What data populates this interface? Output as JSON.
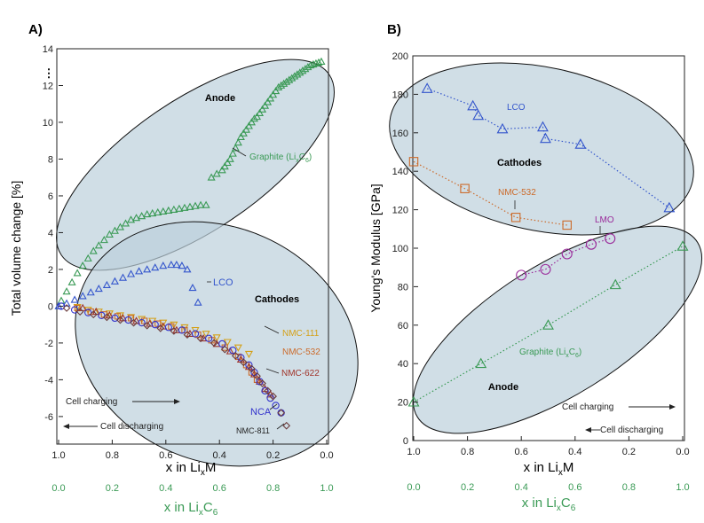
{
  "chart_data": [
    {
      "type": "scatter",
      "panel_label": "A)",
      "xlabel": "x in Li",
      "xlabel_sub": "x",
      "xlabel_tail": "M",
      "xlabel2": "x in Li",
      "xlabel2_sub": "x",
      "xlabel2_tail": "C",
      "xlabel2_sub2": "6",
      "ylabel": "Total volume change [%]",
      "xlim": [
        1.0,
        0.0
      ],
      "ylim": [
        -7.5,
        14
      ],
      "xticks": [
        "1.0",
        "0.8",
        "0.6",
        "0.4",
        "0.2",
        "0.0"
      ],
      "xticks2": [
        "0.0",
        "0.2",
        "0.4",
        "0.6",
        "0.8",
        "1.0"
      ],
      "yticks": [
        "-6",
        "-4",
        "-2",
        "0",
        "2",
        "4",
        "6",
        "8",
        "10",
        "12",
        "14"
      ],
      "ybreak": "⋮",
      "region_labels": {
        "anode": "Anode",
        "cathodes": "Cathodes"
      },
      "arrows": {
        "charging": "Cell charging",
        "discharging": "Cell discharging"
      },
      "series": [
        {
          "name": "Graphite (LixC6)",
          "label_main": "Graphite (Li",
          "label_sub": "x",
          "label_c": "C",
          "label_sub2": "6",
          "label_close": ")",
          "color": "#3a9a55",
          "marker": "triangle",
          "x": [
            0.99,
            0.97,
            0.95,
            0.93,
            0.91,
            0.89,
            0.87,
            0.85,
            0.83,
            0.81,
            0.79,
            0.77,
            0.75,
            0.73,
            0.71,
            0.69,
            0.67,
            0.65,
            0.63,
            0.61,
            0.59,
            0.57,
            0.55,
            0.53,
            0.51,
            0.49,
            0.47,
            0.45,
            0.43,
            0.41,
            0.39,
            0.38,
            0.37,
            0.36,
            0.35,
            0.34,
            0.33,
            0.32,
            0.31,
            0.3,
            0.29,
            0.28,
            0.27,
            0.26,
            0.25,
            0.24,
            0.23,
            0.22,
            0.21,
            0.2,
            0.19,
            0.18,
            0.17,
            0.16,
            0.15,
            0.14,
            0.13,
            0.12,
            0.11,
            0.1,
            0.09,
            0.08,
            0.07,
            0.06,
            0.05,
            0.04,
            0.03,
            0.02
          ],
          "y": [
            0.3,
            0.8,
            1.3,
            1.8,
            2.2,
            2.6,
            3.0,
            3.3,
            3.6,
            3.9,
            4.1,
            4.3,
            4.5,
            4.7,
            4.8,
            4.9,
            5.0,
            5.05,
            5.1,
            5.15,
            5.2,
            5.25,
            5.3,
            5.35,
            5.4,
            5.45,
            5.5,
            5.5,
            7.0,
            7.2,
            7.4,
            7.6,
            7.8,
            8.0,
            8.3,
            8.6,
            8.9,
            9.2,
            9.4,
            9.6,
            9.8,
            10.0,
            10.2,
            10.3,
            10.5,
            10.7,
            10.9,
            11.1,
            11.3,
            11.5,
            11.7,
            11.9,
            12.0,
            12.1,
            12.2,
            12.3,
            12.4,
            12.5,
            12.6,
            12.7,
            12.8,
            12.9,
            13.0,
            13.1,
            13.15,
            13.2,
            13.25,
            13.3
          ]
        },
        {
          "name": "LCO",
          "color": "#3355cc",
          "marker": "triangle",
          "x": [
            1.0,
            0.97,
            0.94,
            0.91,
            0.88,
            0.85,
            0.82,
            0.79,
            0.76,
            0.73,
            0.7,
            0.67,
            0.64,
            0.61,
            0.58,
            0.56,
            0.54,
            0.52,
            0.5,
            0.48
          ],
          "y": [
            0.0,
            0.15,
            0.35,
            0.55,
            0.75,
            0.95,
            1.15,
            1.35,
            1.55,
            1.75,
            1.9,
            2.0,
            2.1,
            2.2,
            2.25,
            2.25,
            2.2,
            2.0,
            1.0,
            0.2
          ]
        },
        {
          "name": "NMC-111",
          "color": "#d4a017",
          "marker": "triangle-down",
          "x": [
            0.93,
            0.89,
            0.85,
            0.81,
            0.77,
            0.73,
            0.69,
            0.65,
            0.61,
            0.57,
            0.53,
            0.49,
            0.45,
            0.41,
            0.37,
            0.33,
            0.29
          ],
          "y": [
            -0.05,
            -0.2,
            -0.3,
            -0.4,
            -0.5,
            -0.6,
            -0.7,
            -0.8,
            -0.9,
            -1.0,
            -1.15,
            -1.3,
            -1.5,
            -1.7,
            -1.95,
            -2.25,
            -2.6
          ]
        },
        {
          "name": "NMC-532",
          "color": "#cc6a2a",
          "marker": "square",
          "x": [
            0.93,
            0.88,
            0.83,
            0.78,
            0.73,
            0.68,
            0.63,
            0.58,
            0.53,
            0.48,
            0.43,
            0.38,
            0.33,
            0.3,
            0.28,
            0.26
          ],
          "y": [
            -0.1,
            -0.3,
            -0.45,
            -0.55,
            -0.65,
            -0.8,
            -0.95,
            -1.1,
            -1.3,
            -1.55,
            -1.85,
            -2.25,
            -2.75,
            -3.2,
            -3.6,
            -4.0
          ]
        },
        {
          "name": "NMC-622",
          "color": "#a0342a",
          "marker": "triangle",
          "x": [
            0.91,
            0.86,
            0.81,
            0.76,
            0.71,
            0.66,
            0.61,
            0.56,
            0.51,
            0.46,
            0.41,
            0.36,
            0.32,
            0.29,
            0.27,
            0.25,
            0.23,
            0.21
          ],
          "y": [
            -0.1,
            -0.3,
            -0.5,
            -0.65,
            -0.8,
            -0.95,
            -1.1,
            -1.3,
            -1.5,
            -1.75,
            -2.05,
            -2.45,
            -2.9,
            -3.3,
            -3.7,
            -4.1,
            -4.5,
            -4.8
          ]
        },
        {
          "name": "NCA",
          "color": "#3333cc",
          "marker": "circle",
          "x": [
            0.99,
            0.94,
            0.89,
            0.84,
            0.79,
            0.74,
            0.69,
            0.64,
            0.59,
            0.54,
            0.49,
            0.44,
            0.39,
            0.35,
            0.32,
            0.29,
            0.27,
            0.25,
            0.23,
            0.21,
            0.19,
            0.17
          ],
          "y": [
            0.0,
            -0.2,
            -0.35,
            -0.5,
            -0.65,
            -0.75,
            -0.9,
            -1.0,
            -1.15,
            -1.3,
            -1.5,
            -1.75,
            -2.05,
            -2.4,
            -2.8,
            -3.2,
            -3.6,
            -4.1,
            -4.6,
            -5.0,
            -5.4,
            -5.8
          ]
        },
        {
          "name": "NMC-811",
          "color": "#6b3b3b",
          "marker": "diamond",
          "x": [
            0.97,
            0.92,
            0.87,
            0.82,
            0.77,
            0.72,
            0.67,
            0.62,
            0.57,
            0.52,
            0.47,
            0.42,
            0.38,
            0.34,
            0.31,
            0.28,
            0.26,
            0.24,
            0.22,
            0.2,
            0.17,
            0.15
          ],
          "y": [
            -0.1,
            -0.3,
            -0.45,
            -0.6,
            -0.75,
            -0.9,
            -1.05,
            -1.2,
            -1.35,
            -1.55,
            -1.75,
            -2.0,
            -2.35,
            -2.7,
            -3.05,
            -3.4,
            -3.8,
            -4.2,
            -4.6,
            -4.9,
            -5.8,
            -6.5
          ]
        }
      ],
      "labels": {
        "LCO": "LCO",
        "NMC-111": "NMC-111",
        "NMC-532": "NMC-532",
        "NMC-622": "NMC-622",
        "NCA": "NCA",
        "NMC-811": "NMC-811"
      }
    },
    {
      "type": "line",
      "panel_label": "B)",
      "xlabel": "x in Li",
      "xlabel_sub": "x",
      "xlabel_tail": "M",
      "xlabel2": "x in Li",
      "xlabel2_sub": "x",
      "xlabel2_tail": "C",
      "xlabel2_sub2": "6",
      "ylabel": "Young's Modulus [GPa]",
      "xlim": [
        1.0,
        0.0
      ],
      "ylim": [
        0,
        200
      ],
      "xticks": [
        "1.0",
        "0.8",
        "0.6",
        "0.4",
        "0.2",
        "0.0"
      ],
      "xticks2": [
        "0.0",
        "0.2",
        "0.4",
        "0.6",
        "0.8",
        "1.0"
      ],
      "yticks": [
        "0",
        "20",
        "40",
        "60",
        "80",
        "100",
        "120",
        "140",
        "160",
        "180",
        "200"
      ],
      "region_labels": {
        "anode": "Anode",
        "cathodes": "Cathodes"
      },
      "arrows": {
        "charging": "Cell charging",
        "discharging": "Cell discharging"
      },
      "series": [
        {
          "name": "LCO",
          "color": "#3355cc",
          "marker": "triangle",
          "x": [
            0.95,
            0.78,
            0.76,
            0.67,
            0.52,
            0.51,
            0.38,
            0.05
          ],
          "y": [
            183,
            174,
            169,
            162,
            163,
            157,
            154,
            121
          ]
        },
        {
          "name": "NMC-532",
          "color": "#cc6a2a",
          "marker": "square",
          "x": [
            1.0,
            0.81,
            0.62,
            0.43
          ],
          "y": [
            145,
            131,
            116,
            112
          ]
        },
        {
          "name": "LMO",
          "color": "#9a2a9a",
          "marker": "circle",
          "x": [
            0.6,
            0.51,
            0.43,
            0.34,
            0.27
          ],
          "y": [
            86,
            89,
            97,
            102,
            105
          ]
        },
        {
          "name": "Graphite (LixC6)",
          "label_main": "Graphite (Li",
          "label_sub": "x",
          "label_c": "C",
          "label_sub2": "6",
          "label_close": ")",
          "color": "#3a9a55",
          "marker": "triangle",
          "x": [
            1.0,
            0.75,
            0.5,
            0.25,
            0.0
          ],
          "y": [
            20,
            40,
            60,
            81,
            101
          ]
        }
      ],
      "labels": {
        "LCO": "LCO",
        "NMC-532": "NMC-532",
        "LMO": "LMO"
      }
    }
  ],
  "colors": {
    "region_fill": "#bcd0dc",
    "region_stroke": "#111111"
  }
}
